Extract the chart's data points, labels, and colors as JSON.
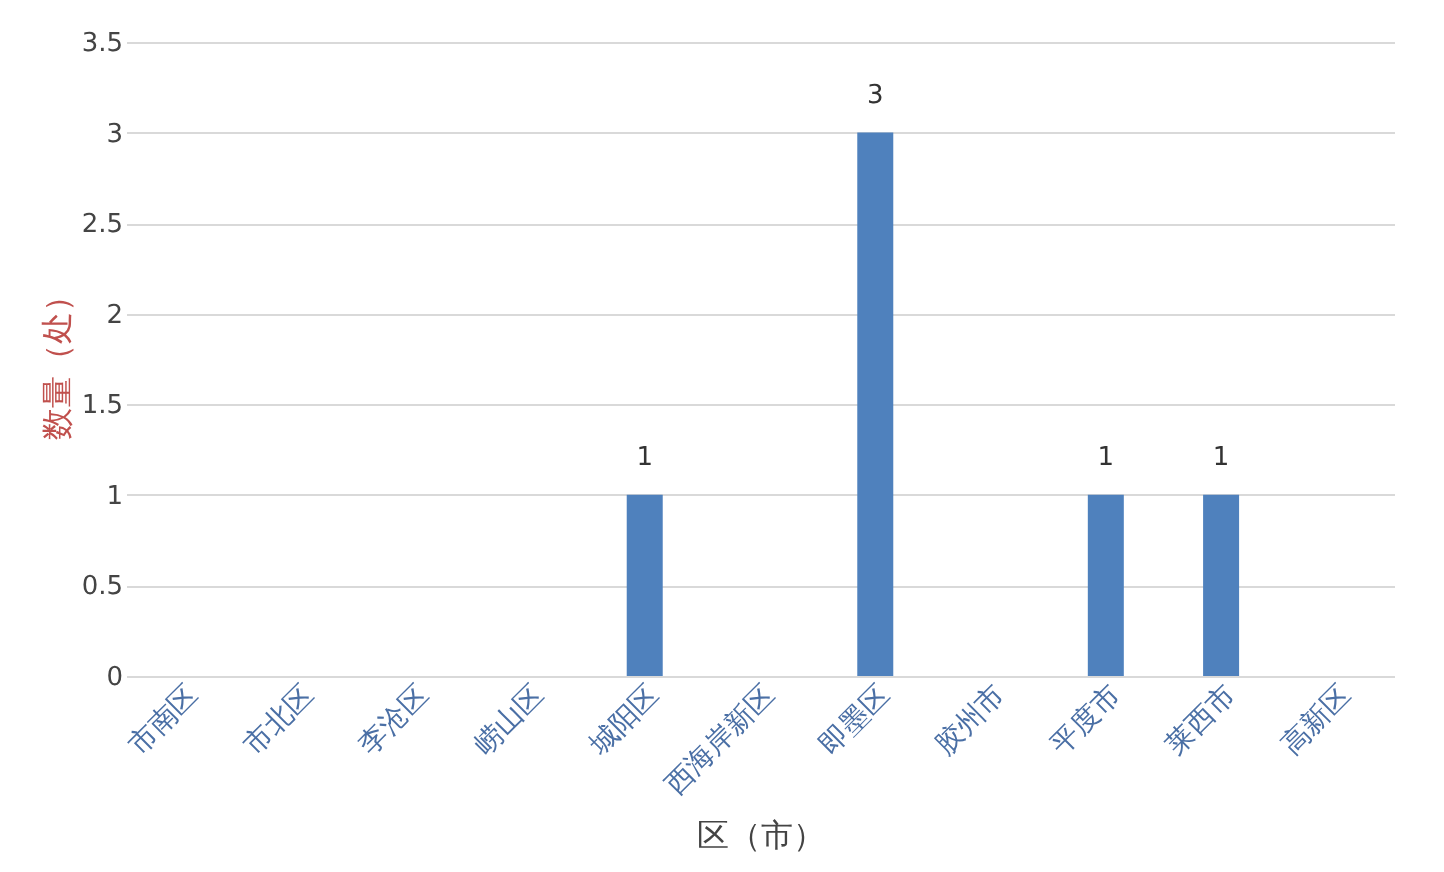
{
  "chart_data": {
    "type": "bar",
    "categories": [
      "市南区",
      "市北区",
      "李沧区",
      "崂山区",
      "城阳区",
      "西海岸新区",
      "即墨区",
      "胶州市",
      "平度市",
      "莱西市",
      "高新区"
    ],
    "values": [
      0,
      0,
      0,
      0,
      1,
      0,
      3,
      0,
      1,
      1,
      0
    ],
    "value_labels": [
      null,
      null,
      null,
      null,
      "1",
      null,
      "3",
      null,
      "1",
      "1",
      null
    ],
    "color": "#4f81bd",
    "xlabel": "区（市）",
    "ylabel": "数量（处）",
    "ylim": [
      0,
      3.5
    ],
    "yticks": [
      0,
      0.5,
      1,
      1.5,
      2,
      2.5,
      3,
      3.5
    ],
    "grid": "y"
  }
}
